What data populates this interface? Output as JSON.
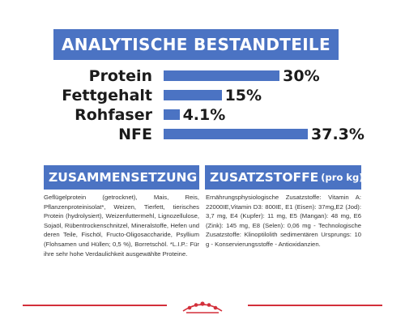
{
  "header": {
    "title": "ANALYTISCHE BESTANDTEILE"
  },
  "colors": {
    "brand_blue": "#4b73c3",
    "accent_red": "#d32f3a",
    "text": "#1b1b1b"
  },
  "nutrients": [
    {
      "label": "Protein",
      "value": "30%",
      "percent": 30
    },
    {
      "label": "Fettgehalt",
      "value": "15%",
      "percent": 15
    },
    {
      "label": "Rohfaser",
      "value": "4.1%",
      "percent": 4.1
    },
    {
      "label": "NFE",
      "value": "37.3%",
      "percent": 37.3
    }
  ],
  "composition": {
    "title": "ZUSAMMENSETZUNG",
    "text": "Geflügelprotein (getrocknet), Mais, Reis, Pflanzenproteinisolat*, Weizen, Tierfett, tierisches Protein (hydrolysiert), Weizenfuttermehl, Lignozellulose, Sojaöl, Rübentrockenschnitzel, Mineralstoffe, Hefen und deren Teile, Fischöl, Fructo-Oligosaccharide, Psyllium (Flohsamen und Hüllen; 0,5 %), Borretschöl. *L.I.P.: Für ihre sehr hohe Verdaulichkeit ausgewählte Proteine."
  },
  "additives": {
    "title": "ZUSATZSTOFFE",
    "title_suffix": "(pro kg)",
    "text": "Ernährungsphysiologische Zusatzstoffe: Vitamin A: 22000IE,Vitamin D3: 800IE, E1 (Eisen): 37mg,E2 (Jod): 3,7 mg, E4 (Kupfer): 11 mg, E5 (Mangan): 48 mg, E6 (Zink): 145 mg, E8 (Selen): 0,06 mg - Technologische Zusatzstoffe: Klinoptilolith sedimentären Ursprungs: 10 g - Konservierungsstoffe - Antioxidanzien."
  },
  "footer": {
    "logo_icon": "royal-canin-crown-icon"
  }
}
